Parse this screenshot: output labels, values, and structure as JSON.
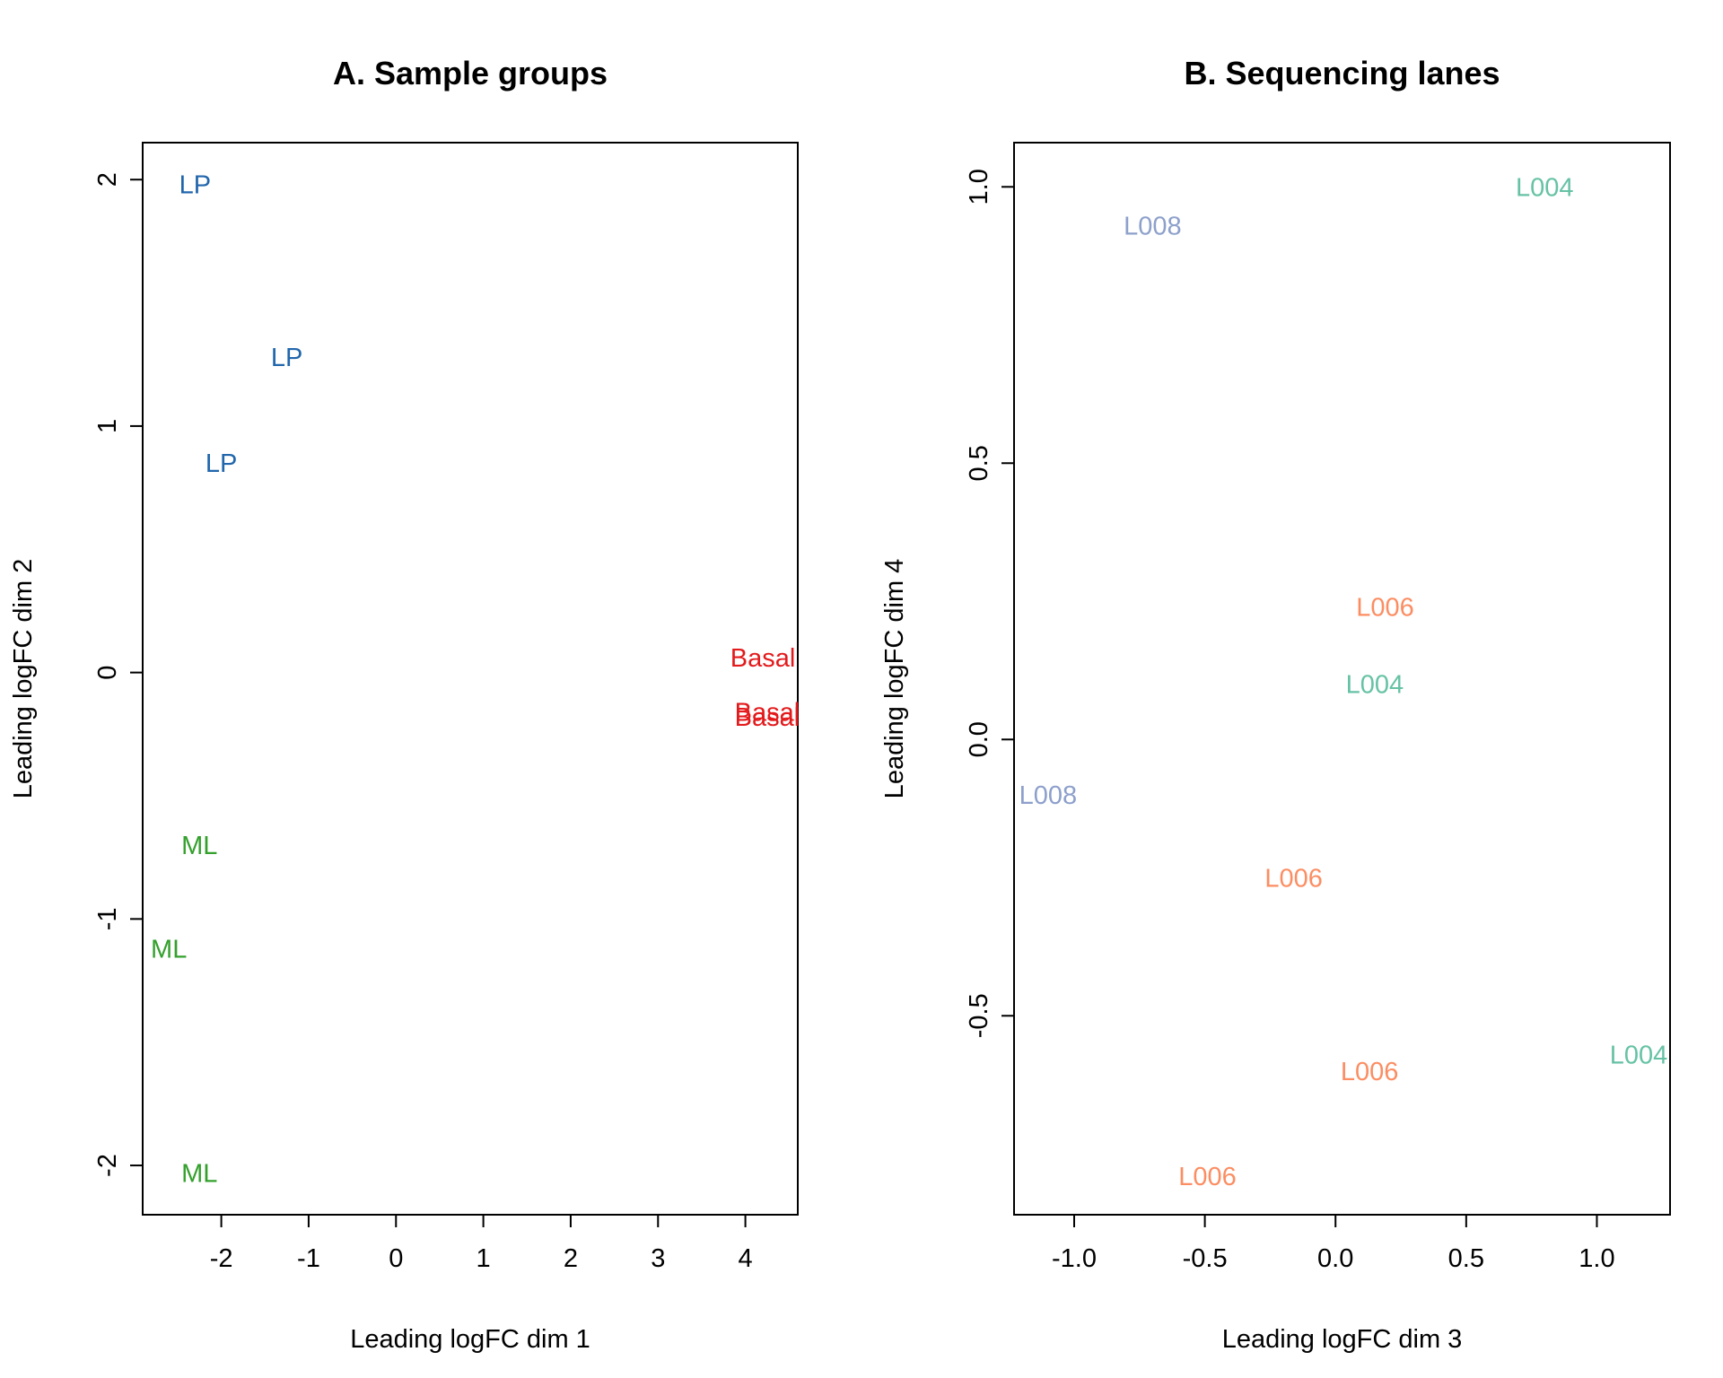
{
  "chart_data": [
    {
      "type": "scatter",
      "title": "A. Sample groups",
      "xlabel": "Leading logFC dim 1",
      "ylabel": "Leading logFC dim 2",
      "xlim": [
        -2.9,
        4.6
      ],
      "ylim": [
        -2.2,
        2.15
      ],
      "xticks": [
        -2,
        -1,
        0,
        1,
        2,
        3,
        4
      ],
      "yticks": [
        -2,
        -1,
        0,
        1,
        2
      ],
      "legend": "none",
      "grid": false,
      "groups": [
        {
          "label": "LP",
          "color": "#2166ac"
        },
        {
          "label": "ML",
          "color": "#33a02c"
        },
        {
          "label": "Basal",
          "color": "#e31a1c"
        }
      ],
      "points": [
        {
          "x": -2.3,
          "y": 1.98,
          "label": "LP",
          "color": "#2166ac"
        },
        {
          "x": -1.25,
          "y": 1.28,
          "label": "LP",
          "color": "#2166ac"
        },
        {
          "x": -2.0,
          "y": 0.85,
          "label": "LP",
          "color": "#2166ac"
        },
        {
          "x": -2.25,
          "y": -0.7,
          "label": "ML",
          "color": "#33a02c"
        },
        {
          "x": -2.6,
          "y": -1.12,
          "label": "ML",
          "color": "#33a02c"
        },
        {
          "x": -2.25,
          "y": -2.03,
          "label": "ML",
          "color": "#33a02c"
        },
        {
          "x": 4.2,
          "y": 0.06,
          "label": "Basal",
          "color": "#e31a1c"
        },
        {
          "x": 4.25,
          "y": -0.16,
          "label": "Basal",
          "color": "#e31a1c"
        },
        {
          "x": 4.25,
          "y": -0.18,
          "label": "Basal",
          "color": "#e31a1c"
        }
      ]
    },
    {
      "type": "scatter",
      "title": "B. Sequencing lanes",
      "xlabel": "Leading logFC dim 3",
      "ylabel": "Leading logFC dim 4",
      "xlim": [
        -1.23,
        1.28
      ],
      "ylim": [
        -0.86,
        1.08
      ],
      "xticks": [
        -1.0,
        -0.5,
        0.0,
        0.5,
        1.0
      ],
      "yticks": [
        -0.5,
        0.0,
        0.5,
        1.0
      ],
      "legend": "none",
      "grid": false,
      "groups": [
        {
          "label": "L004",
          "color": "#66c2a5"
        },
        {
          "label": "L006",
          "color": "#fc8d62"
        },
        {
          "label": "L008",
          "color": "#8da0cb"
        }
      ],
      "points": [
        {
          "x": 0.8,
          "y": 1.0,
          "label": "L004",
          "color": "#66c2a5"
        },
        {
          "x": -0.7,
          "y": 0.93,
          "label": "L008",
          "color": "#8da0cb"
        },
        {
          "x": 0.19,
          "y": 0.24,
          "label": "L006",
          "color": "#fc8d62"
        },
        {
          "x": 0.15,
          "y": 0.1,
          "label": "L004",
          "color": "#66c2a5"
        },
        {
          "x": -1.1,
          "y": -0.1,
          "label": "L008",
          "color": "#8da0cb"
        },
        {
          "x": -0.16,
          "y": -0.25,
          "label": "L006",
          "color": "#fc8d62"
        },
        {
          "x": 1.16,
          "y": -0.57,
          "label": "L004",
          "color": "#66c2a5"
        },
        {
          "x": 0.13,
          "y": -0.6,
          "label": "L006",
          "color": "#fc8d62"
        },
        {
          "x": -0.49,
          "y": -0.79,
          "label": "L006",
          "color": "#fc8d62"
        }
      ]
    }
  ]
}
